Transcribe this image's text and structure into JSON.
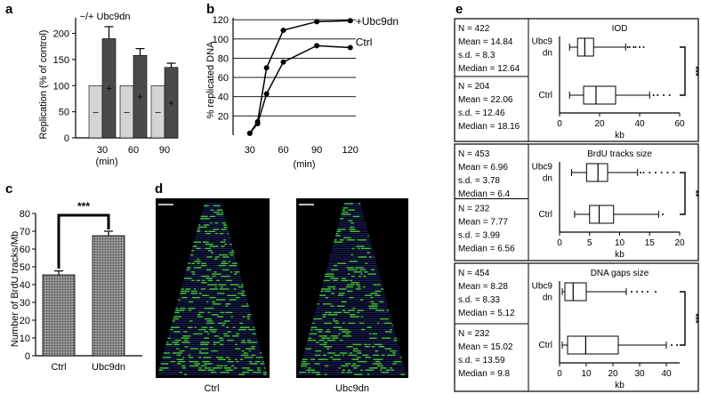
{
  "panel_labels": {
    "a": "a",
    "b": "b",
    "c": "c",
    "d": "d",
    "e": "e"
  },
  "chart_data": [
    {
      "panel": "a",
      "type": "bar",
      "title": "−/+ Ubc9dn",
      "ylabel": "Replication (% of control)",
      "xlabel": "(min)",
      "categories": [
        "30",
        "60",
        "90"
      ],
      "yticks": [
        "0",
        "50",
        "100",
        "150",
        "200"
      ],
      "ylim": [
        0,
        230
      ],
      "series": [
        {
          "name": "−",
          "color": "#d4d4d4",
          "values": [
            100,
            100,
            100
          ],
          "errors": [
            0,
            0,
            0
          ]
        },
        {
          "name": "+",
          "color": "#4a4a4a",
          "values": [
            190,
            158,
            135
          ],
          "errors": [
            23,
            13,
            8
          ]
        }
      ],
      "bar_marks": {
        "minus": "–",
        "plus": "+"
      }
    },
    {
      "panel": "b",
      "type": "line",
      "ylabel": "% replicated DNA",
      "xlabel": "(min)",
      "xticks": [
        "30",
        "60",
        "90",
        "120"
      ],
      "yticks": [
        "20",
        "40",
        "60",
        "80",
        "100",
        "120"
      ],
      "xlim": [
        15,
        125
      ],
      "ylim": [
        0,
        122
      ],
      "series": [
        {
          "name": "+Ubc9dn",
          "x": [
            30,
            37,
            45,
            60,
            90,
            120
          ],
          "y": [
            2,
            14,
            70,
            109,
            118,
            119
          ]
        },
        {
          "name": "Ctrl",
          "x": [
            30,
            37,
            45,
            60,
            90,
            120
          ],
          "y": [
            2,
            12,
            43,
            76,
            93,
            91
          ]
        }
      ]
    },
    {
      "panel": "c",
      "type": "bar",
      "ylabel": "Number of BrdU tracks/Mb",
      "categories": [
        "Ctrl",
        "Ubc9dn"
      ],
      "yticks": [
        "0",
        "10",
        "20",
        "30",
        "40",
        "50",
        "60",
        "70",
        "80"
      ],
      "ylim": [
        0,
        80
      ],
      "values": [
        45.5,
        67.5
      ],
      "errors": [
        2.2,
        2.5
      ],
      "significance": "***"
    },
    {
      "panel": "d",
      "type": "heatmap",
      "labels": [
        "Ctrl",
        "Ubc9dn"
      ]
    },
    {
      "panel": "e",
      "type": "box",
      "xlabel": "kb",
      "group_labels": [
        "Ubc9\ndn",
        "Ctrl"
      ],
      "subpanels": [
        {
          "title": "IOD",
          "xticks": [
            "0",
            "20",
            "40",
            "60"
          ],
          "xlim": [
            0,
            60
          ],
          "significance": "***",
          "stats": [
            {
              "N": "N = 422",
              "mean": "Mean = 14.84",
              "sd": "s.d. = 8.3",
              "median": "Median = 12.64"
            },
            {
              "N": "N = 204",
              "mean": "Mean = 22.06",
              "sd": "s.d. = 12.46",
              "median": "Median = 18.16"
            }
          ],
          "boxes": [
            {
              "group": "Ubc9 dn",
              "whisker_low": 5,
              "q1": 9,
              "median": 12.6,
              "q3": 17,
              "whisker_high": 33,
              "outliers": [
                34,
                35,
                37,
                38,
                40,
                42
              ]
            },
            {
              "group": "Ctrl",
              "whisker_low": 5,
              "q1": 12,
              "median": 18.2,
              "q3": 28,
              "whisker_high": 45,
              "outliers": [
                47,
                49,
                52,
                55
              ]
            }
          ]
        },
        {
          "title": "BrdU tracks size",
          "xticks": [
            "0",
            "5",
            "10",
            "15",
            "20"
          ],
          "xlim": [
            0,
            20
          ],
          "significance": "**",
          "stats": [
            {
              "N": "N = 453",
              "mean": "Mean = 6.96",
              "sd": "s.d. = 3.78",
              "median": "Median = 6.4"
            },
            {
              "N": "N = 232",
              "mean": "Mean = 7.77",
              "sd": "s.d. = 3.99",
              "median": "Median = 6.56"
            }
          ],
          "boxes": [
            {
              "group": "Ubc9 dn",
              "whisker_low": 2,
              "q1": 4.5,
              "median": 6.4,
              "q3": 8,
              "whisker_high": 13,
              "outliers": [
                13.5,
                14,
                15,
                16,
                17,
                18,
                19
              ]
            },
            {
              "group": "Ctrl",
              "whisker_low": 2.5,
              "q1": 5,
              "median": 6.6,
              "q3": 9,
              "whisker_high": 16.5,
              "outliers": [
                17.2
              ]
            }
          ]
        },
        {
          "title": "DNA gaps size",
          "xticks": [
            "0",
            "10",
            "20",
            "30",
            "40"
          ],
          "xlim": [
            0,
            45
          ],
          "significance": "***",
          "stats": [
            {
              "N": "N = 454",
              "mean": "Mean = 8.28",
              "sd": "s.d. = 8.33",
              "median": "Median = 5.12"
            },
            {
              "N": "N = 232",
              "mean": "Mean = 15.02",
              "sd": "s.d. = 13.59",
              "median": "Median = 9.8"
            }
          ],
          "boxes": [
            {
              "group": "Ubc9 dn",
              "whisker_low": 1,
              "q1": 2,
              "median": 5.1,
              "q3": 10,
              "whisker_high": 25,
              "outliers": [
                27,
                29,
                31,
                33,
                36
              ]
            },
            {
              "group": "Ctrl",
              "whisker_low": 1,
              "q1": 3,
              "median": 9.8,
              "q3": 22,
              "whisker_high": 40,
              "outliers": [
                42,
                44
              ]
            }
          ]
        }
      ]
    }
  ]
}
